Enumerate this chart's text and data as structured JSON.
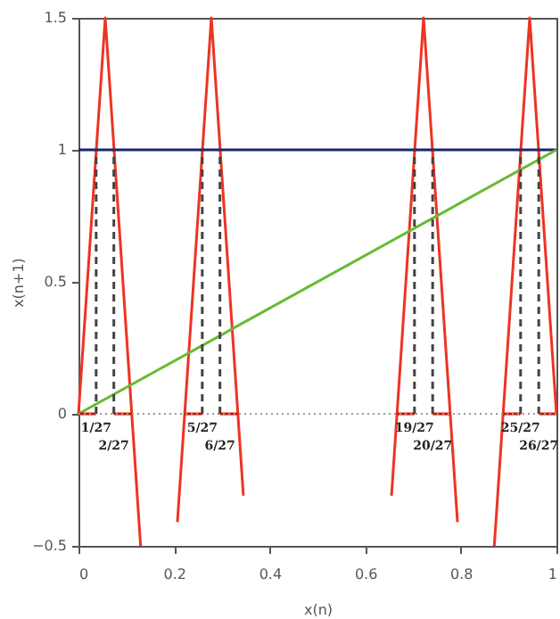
{
  "chart_data": {
    "type": "line",
    "xlabel": "x(n)",
    "ylabel": "x(n+1)",
    "xlim": [
      0,
      1
    ],
    "xticks": [
      0,
      0.2,
      0.4,
      0.6,
      0.8,
      1
    ],
    "ylim": [
      -0.5,
      1.5
    ],
    "yticks": [
      -0.5,
      0,
      0.5,
      1,
      1.5
    ],
    "grid": false,
    "line_style": "solid",
    "series": [
      {
        "color": "#ee3322",
        "x": [
          0,
          0.056,
          0.13
        ],
        "values": [
          0,
          1.5,
          -0.5
        ]
      },
      {
        "color": "#ee3322",
        "x": [
          0.207,
          0.278,
          0.345
        ],
        "values": [
          -0.41,
          1.5,
          -0.31
        ]
      },
      {
        "color": "#ee3322",
        "x": [
          0.655,
          0.722,
          0.793
        ],
        "values": [
          -0.31,
          1.5,
          -0.41
        ]
      },
      {
        "color": "#ee3322",
        "x": [
          0.87,
          0.944,
          1
        ],
        "values": [
          -0.5,
          1.5,
          0
        ]
      },
      {
        "color": "#1a2670",
        "x": [
          0,
          1
        ],
        "values": [
          1,
          1
        ]
      },
      {
        "color": "#66bb33",
        "x": [
          0,
          1
        ],
        "values": [
          0,
          1
        ]
      },
      {
        "color": "#cc1100",
        "x": [
          0,
          0.037
        ],
        "values": [
          0,
          0
        ]
      },
      {
        "color": "#cc1100",
        "x": [
          0.074,
          0.111
        ],
        "values": [
          0,
          0
        ]
      },
      {
        "color": "#cc1100",
        "x": [
          0.222,
          0.259
        ],
        "values": [
          0,
          0
        ]
      },
      {
        "color": "#cc1100",
        "x": [
          0.296,
          0.333
        ],
        "values": [
          0,
          0
        ]
      },
      {
        "color": "#cc1100",
        "x": [
          0.667,
          0.703
        ],
        "values": [
          0,
          0
        ]
      },
      {
        "color": "#cc1100",
        "x": [
          0.741,
          0.778
        ],
        "values": [
          0,
          0
        ]
      },
      {
        "color": "#cc1100",
        "x": [
          0.889,
          0.925
        ],
        "values": [
          0,
          0
        ]
      },
      {
        "color": "#cc1100",
        "x": [
          0.963,
          1
        ],
        "values": [
          0,
          0
        ]
      },
      {
        "color": "#444444",
        "line_style": "dashed",
        "x": [
          0.037,
          0.037
        ],
        "values": [
          0,
          1
        ]
      },
      {
        "color": "#444444",
        "line_style": "dashed",
        "x": [
          0.074,
          0.074
        ],
        "values": [
          0,
          1
        ]
      },
      {
        "color": "#444444",
        "line_style": "dashed",
        "x": [
          0.259,
          0.259
        ],
        "values": [
          0,
          1
        ]
      },
      {
        "color": "#444444",
        "line_style": "dashed",
        "x": [
          0.296,
          0.296
        ],
        "values": [
          0,
          1
        ]
      },
      {
        "color": "#444444",
        "line_style": "dashed",
        "x": [
          0.703,
          0.703
        ],
        "values": [
          0,
          1
        ]
      },
      {
        "color": "#444444",
        "line_style": "dashed",
        "x": [
          0.741,
          0.741
        ],
        "values": [
          0,
          1
        ]
      },
      {
        "color": "#444444",
        "line_style": "dashed",
        "x": [
          0.925,
          0.925
        ],
        "values": [
          0,
          1
        ]
      },
      {
        "color": "#444444",
        "line_style": "dashed",
        "x": [
          0.963,
          0.963
        ],
        "values": [
          0,
          1
        ]
      }
    ],
    "ref_lines": [
      {
        "axis": "y",
        "value": 0,
        "color": "#999999",
        "line_style": "dotted"
      }
    ],
    "annotations": [
      {
        "text": "1/27",
        "x": 0.037,
        "y": 0
      },
      {
        "text": "2/27",
        "x": 0.074,
        "y": 0
      },
      {
        "text": "5/27",
        "x": 0.259,
        "y": 0
      },
      {
        "text": "6/27",
        "x": 0.296,
        "y": 0
      },
      {
        "text": "19/27",
        "x": 0.703,
        "y": 0
      },
      {
        "text": "20/27",
        "x": 0.741,
        "y": 0
      },
      {
        "text": "25/27",
        "x": 0.925,
        "y": 0
      },
      {
        "text": "26/27",
        "x": 0.963,
        "y": 0
      }
    ]
  }
}
